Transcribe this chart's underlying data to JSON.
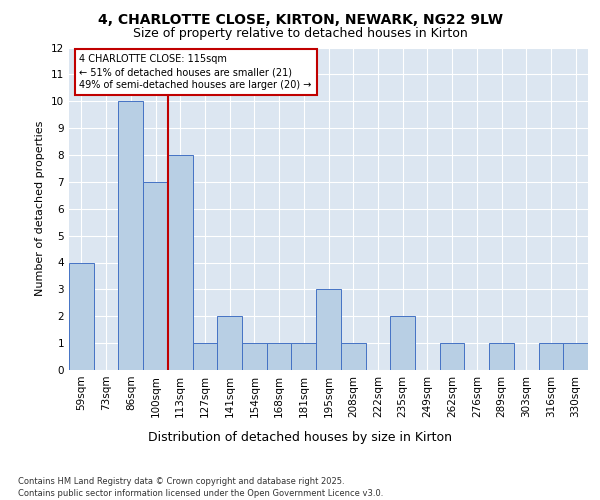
{
  "title_line1": "4, CHARLOTTE CLOSE, KIRTON, NEWARK, NG22 9LW",
  "title_line2": "Size of property relative to detached houses in Kirton",
  "xlabel": "Distribution of detached houses by size in Kirton",
  "ylabel": "Number of detached properties",
  "categories": [
    "59sqm",
    "73sqm",
    "86sqm",
    "100sqm",
    "113sqm",
    "127sqm",
    "141sqm",
    "154sqm",
    "168sqm",
    "181sqm",
    "195sqm",
    "208sqm",
    "222sqm",
    "235sqm",
    "249sqm",
    "262sqm",
    "276sqm",
    "289sqm",
    "303sqm",
    "316sqm",
    "330sqm"
  ],
  "values": [
    4,
    0,
    10,
    7,
    8,
    1,
    2,
    1,
    1,
    1,
    3,
    1,
    0,
    2,
    0,
    1,
    0,
    1,
    0,
    1,
    1
  ],
  "bar_color": "#b8cfe4",
  "bar_edge_color": "#4472c4",
  "ref_line_color": "#c00000",
  "annotation_text": "4 CHARLOTTE CLOSE: 115sqm\n← 51% of detached houses are smaller (21)\n49% of semi-detached houses are larger (20) →",
  "ylim": [
    0,
    12
  ],
  "yticks": [
    0,
    1,
    2,
    3,
    4,
    5,
    6,
    7,
    8,
    9,
    10,
    11,
    12
  ],
  "footer_text": "Contains HM Land Registry data © Crown copyright and database right 2025.\nContains public sector information licensed under the Open Government Licence v3.0.",
  "bg_color": "#ffffff",
  "plot_bg_color": "#dce6f1",
  "title1_fontsize": 10,
  "title2_fontsize": 9,
  "ylabel_fontsize": 8,
  "xlabel_fontsize": 9,
  "tick_fontsize": 7.5,
  "ann_fontsize": 7,
  "footer_fontsize": 6
}
